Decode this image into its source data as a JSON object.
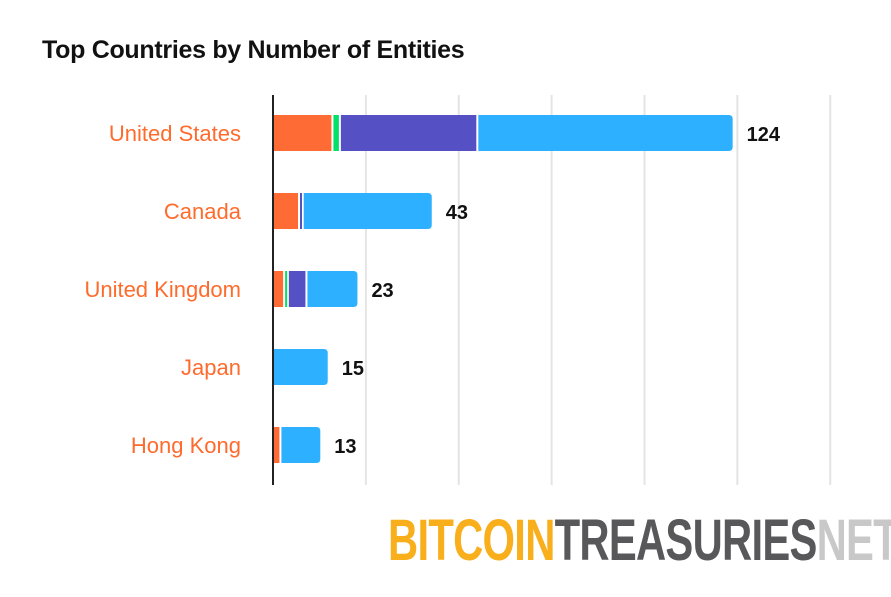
{
  "chart_data": {
    "type": "bar",
    "orientation": "horizontal",
    "stacked": true,
    "title": "Top Countries by Number of Entities",
    "xlabel": "",
    "ylabel": "",
    "xlim": [
      0,
      150
    ],
    "grid": true,
    "grid_step": 25,
    "categories": [
      "United States",
      "Canada",
      "United Kingdom",
      "Japan",
      "Hong Kong"
    ],
    "totals": [
      124,
      43,
      23,
      15,
      13
    ],
    "series": [
      {
        "color": "#FF6B35",
        "values": [
          16,
          7,
          3,
          0,
          2
        ]
      },
      {
        "color": "#00E06B",
        "values": [
          2,
          0,
          1,
          0,
          0
        ]
      },
      {
        "color": "#5551C4",
        "values": [
          37,
          1,
          5,
          0,
          0
        ]
      },
      {
        "color": "#2DB0FF",
        "values": [
          69,
          35,
          14,
          15,
          11
        ]
      }
    ],
    "label_color": "#FF6B2C"
  },
  "logo": {
    "part1": "BITCOIN",
    "part2": "TREASURIES",
    "part3": "NET"
  }
}
